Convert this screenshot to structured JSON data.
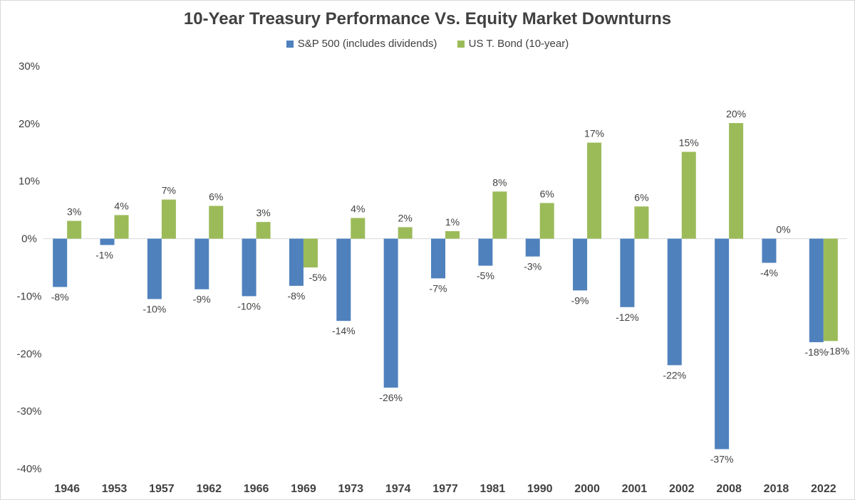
{
  "chart_data": {
    "type": "bar",
    "title": "10-Year Treasury Performance Vs. Equity Market Downturns",
    "xlabel": "",
    "ylabel": "",
    "ylim": [
      -40,
      30
    ],
    "yticks": [
      30,
      20,
      10,
      0,
      -10,
      -20,
      -30,
      -40
    ],
    "ytick_labels": [
      "30%",
      "20%",
      "10%",
      "0%",
      "-10%",
      "-20%",
      "-30%",
      "-40%"
    ],
    "grid": false,
    "legend_position": "top",
    "categories": [
      "1946",
      "1953",
      "1957",
      "1962",
      "1966",
      "1969",
      "1973",
      "1974",
      "1977",
      "1981",
      "1990",
      "2000",
      "2001",
      "2002",
      "2008",
      "2018",
      "2022"
    ],
    "series": [
      {
        "name": "S&P 500 (includes dividends)",
        "color": "#4f81bd",
        "values": [
          -8.4,
          -1.1,
          -10.5,
          -8.8,
          -10.0,
          -8.2,
          -14.3,
          -25.9,
          -6.9,
          -4.7,
          -3.1,
          -9.0,
          -11.9,
          -22.0,
          -36.6,
          -4.2,
          -18.0
        ],
        "labels": [
          "-8%",
          "-1%",
          "-10%",
          "-9%",
          "-10%",
          "-8%",
          "-14%",
          "-26%",
          "-7%",
          "-5%",
          "-3%",
          "-9%",
          "-12%",
          "-22%",
          "-37%",
          "-4%",
          "-18%"
        ]
      },
      {
        "name": "US T. Bond (10-year)",
        "color": "#9bbb59",
        "values": [
          3.1,
          4.1,
          6.8,
          5.7,
          2.9,
          -5.0,
          3.6,
          2.0,
          1.3,
          8.2,
          6.2,
          16.7,
          5.6,
          15.1,
          20.1,
          0.0,
          -17.8
        ],
        "labels": [
          "3%",
          "4%",
          "7%",
          "6%",
          "3%",
          "-5%",
          "4%",
          "2%",
          "1%",
          "8%",
          "6%",
          "17%",
          "6%",
          "15%",
          "20%",
          "0%",
          "-18%"
        ]
      }
    ]
  }
}
